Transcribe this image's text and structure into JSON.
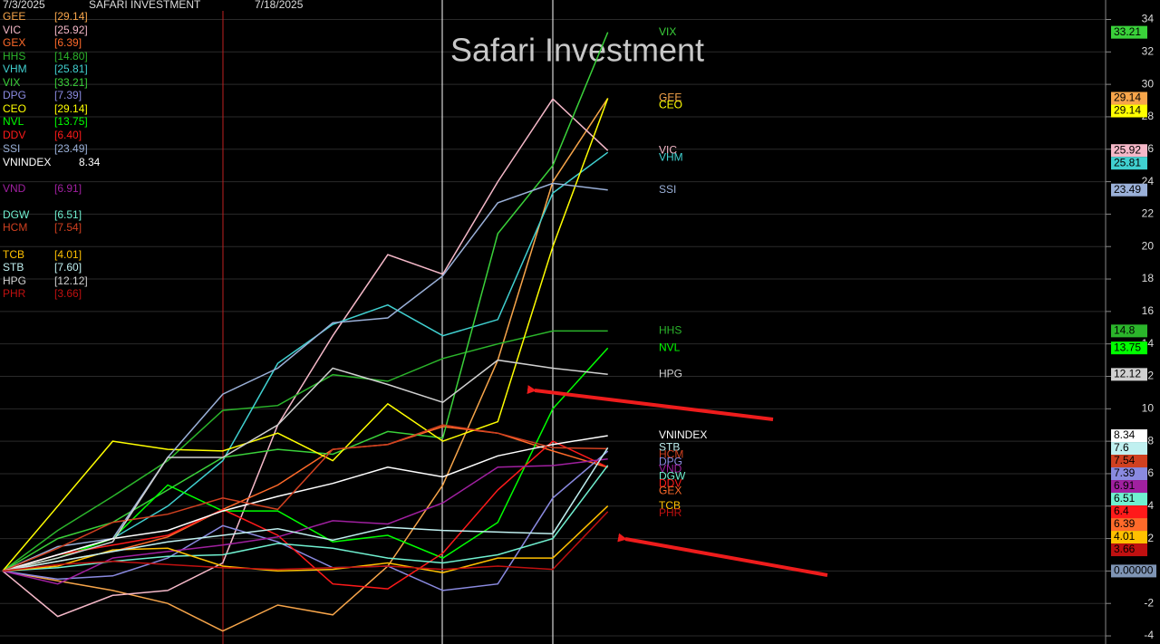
{
  "header": {
    "start_date": "7/3/2025",
    "name": "SAFARI INVESTMENT",
    "end_date": "7/18/2025"
  },
  "chart_data": {
    "type": "line",
    "title": "Safari Investment",
    "categories": [
      null,
      null,
      null,
      null,
      null,
      null,
      null,
      null,
      null,
      null,
      null,
      null
    ],
    "ylim": [
      -4.5,
      35.2
    ],
    "yticks": [
      -4,
      -2,
      0,
      2,
      4,
      6,
      8,
      10,
      12,
      14,
      16,
      18,
      20,
      22,
      24,
      26,
      28,
      30,
      32,
      34
    ],
    "grid": true,
    "zero_label": {
      "value": 0,
      "label": "0.00000"
    },
    "series": [
      {
        "name": "GEE",
        "color": "#f7a54a",
        "legend_label": "[29.14]",
        "value_label": "29.14",
        "values": [
          0,
          -0.6,
          -1.2,
          -2.0,
          -3.7,
          -2.1,
          -2.7,
          0.3,
          5.3,
          13,
          24,
          29.14
        ]
      },
      {
        "name": "VIC",
        "color": "#f5b8c8",
        "legend_label": "[25.92]",
        "value_label": "25.92",
        "values": [
          0,
          -2.8,
          -1.5,
          -1.2,
          0.5,
          9,
          14.5,
          19.5,
          18.3,
          24,
          29.1,
          25.92
        ]
      },
      {
        "name": "GEX",
        "color": "#ff6a2a",
        "legend_label": "[6.39]",
        "value_label": "6.39",
        "values": [
          0,
          0.6,
          1.2,
          2.1,
          3.8,
          5.3,
          7.5,
          7.8,
          8.9,
          8.5,
          7.4,
          6.39
        ]
      },
      {
        "name": "HHS",
        "color": "#2bb52b",
        "legend_label": "[14.80]",
        "value_label": "14.8",
        "values": [
          0,
          2.5,
          4.6,
          6.8,
          9.9,
          10.2,
          12.1,
          11.7,
          13.1,
          14,
          14.8,
          14.8
        ]
      },
      {
        "name": "VHM",
        "color": "#40d0d0",
        "legend_label": "[25.81]",
        "value_label": "25.81",
        "values": [
          0,
          1,
          2,
          4,
          6.8,
          12.8,
          15.2,
          16.4,
          14.5,
          15.5,
          23.3,
          25.81
        ]
      },
      {
        "name": "VIX",
        "color": "#3ad13a",
        "legend_label": "[33.21]",
        "value_label": "33.21",
        "values": [
          0,
          2,
          3,
          5,
          7,
          7.5,
          7.2,
          8.6,
          8.2,
          20.8,
          25,
          33.21
        ]
      },
      {
        "name": "DPG",
        "color": "#8a8ae0",
        "legend_label": "[7.39]",
        "value_label": "7.39",
        "values": [
          0,
          -0.5,
          -0.3,
          0.8,
          2.8,
          1.8,
          0.2,
          0.3,
          -1.2,
          -0.8,
          4.5,
          7.39
        ]
      },
      {
        "name": "CEO",
        "color": "#ffff00",
        "legend_label": "[29.14]",
        "value_label": "29.14",
        "values": [
          0,
          4,
          8,
          7.5,
          7.4,
          8.5,
          6.8,
          10.3,
          8,
          9.2,
          20,
          29.14
        ]
      },
      {
        "name": "NVL",
        "color": "#00ff00",
        "legend_label": "[13.75]",
        "value_label": "13.75",
        "values": [
          0,
          0.8,
          2,
          5.3,
          3.7,
          3.7,
          1.8,
          2.2,
          0.8,
          3,
          10,
          13.75
        ]
      },
      {
        "name": "DDV",
        "color": "#ff1a1a",
        "legend_label": "[6.40]",
        "value_label": "6.4",
        "values": [
          0,
          1,
          1.6,
          2.2,
          3.8,
          2.2,
          -0.8,
          -1.1,
          1.1,
          5,
          8,
          6.4
        ]
      },
      {
        "name": "SSI",
        "color": "#9ab0d8",
        "legend_label": "[23.49]",
        "value_label": "23.49",
        "values": [
          0,
          1.5,
          2,
          7,
          10.9,
          12.5,
          15.3,
          15.6,
          18.2,
          22.7,
          23.9,
          23.49
        ]
      },
      {
        "name": "VNINDEX",
        "color": "#ffffff",
        "legend_label": "8.34",
        "value_label": "8.34",
        "values": [
          0,
          1,
          2,
          2.5,
          3.7,
          4.6,
          5.4,
          6.4,
          5.8,
          7.1,
          7.8,
          8.34
        ]
      },
      {
        "name": "VND",
        "color": "#a020a0",
        "legend_label": "[6.91]",
        "value_label": "6.91",
        "values": [
          0,
          -0.8,
          0.8,
          1.2,
          1.6,
          2.1,
          3.1,
          2.9,
          4.2,
          6.4,
          6.5,
          6.91
        ]
      },
      {
        "name": "DGW",
        "color": "#70f0d0",
        "legend_label": "[6.51]",
        "value_label": "6.51",
        "values": [
          0,
          0.2,
          0.6,
          0.9,
          1,
          1.7,
          1.4,
          0.8,
          0.5,
          1,
          2,
          6.51
        ]
      },
      {
        "name": "HCM",
        "color": "#d04020",
        "legend_label": "[7.54]",
        "value_label": "7.54",
        "values": [
          0,
          1.4,
          3,
          3.5,
          4.5,
          3.8,
          7.5,
          7.8,
          9,
          8.5,
          7.6,
          7.54
        ]
      },
      {
        "name": "TCB",
        "color": "#ffc000",
        "legend_label": "[4.01]",
        "value_label": "4.01",
        "values": [
          0,
          0.3,
          1.3,
          1.4,
          0.3,
          0,
          0.1,
          0.5,
          -0.1,
          0.8,
          0.8,
          4.01
        ]
      },
      {
        "name": "STB",
        "color": "#c0f0f0",
        "legend_label": "[7.60]",
        "value_label": "7.6",
        "values": [
          0,
          0.6,
          1.2,
          1.8,
          2.2,
          2.6,
          1.9,
          2.7,
          2.5,
          2.4,
          2.3,
          7.6
        ]
      },
      {
        "name": "HPG",
        "color": "#d0d0d0",
        "legend_label": "[12.12]",
        "value_label": "12.12",
        "values": [
          0,
          0.8,
          1.8,
          7,
          7,
          9,
          12.5,
          11.5,
          10.4,
          13,
          12.5,
          12.12
        ]
      },
      {
        "name": "PHR",
        "color": "#c01010",
        "legend_label": "[3.66]",
        "value_label": "3.66",
        "values": [
          0,
          0.4,
          0.6,
          0.4,
          0.2,
          0.1,
          0.2,
          0.3,
          0.1,
          0.3,
          0.1,
          3.66
        ]
      }
    ]
  }
}
